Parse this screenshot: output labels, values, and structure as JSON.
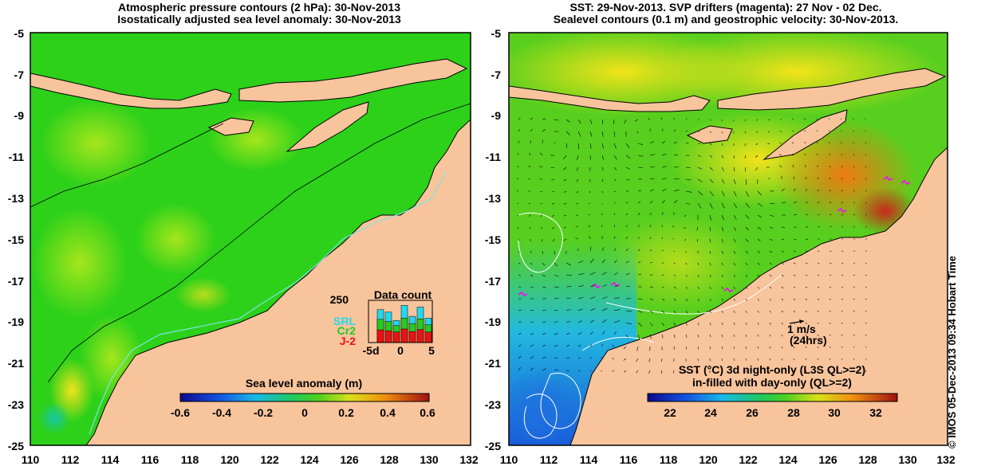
{
  "left_panel": {
    "title_line1": "Atmospheric pressure contours (2 hPa): 30-Nov-2013",
    "title_line2": "Isostatically adjusted sea level anomaly: 30-Nov-2013",
    "x_ticks": [
      "110",
      "112",
      "114",
      "116",
      "118",
      "120",
      "122",
      "124",
      "126",
      "128",
      "130",
      "132"
    ],
    "y_ticks": [
      "-5",
      "-7",
      "-9",
      "-11",
      "-13",
      "-15",
      "-17",
      "-19",
      "-21",
      "-23",
      "-25"
    ],
    "colorbar": {
      "title": "Sea level anomaly (m)",
      "ticks": [
        "-0.6",
        "-0.4",
        "-0.2",
        "0",
        "0.2",
        "0.4",
        "0.6"
      ]
    },
    "data_count": {
      "title": "Data count",
      "ymax_label": "250",
      "legend": [
        {
          "label": "SRL",
          "color": "#22d8f0"
        },
        {
          "label": "Cr2",
          "color": "#22cc22"
        },
        {
          "label": "J-2",
          "color": "#ee1111"
        }
      ],
      "x_labels": [
        "-5d",
        "0",
        "5"
      ],
      "bars": [
        {
          "srl": 0.0,
          "cr2": 0.0,
          "j2": 0.0
        },
        {
          "srl": 0.78,
          "cr2": 0.55,
          "j2": 0.3
        },
        {
          "srl": 0.72,
          "cr2": 0.5,
          "j2": 0.28
        },
        {
          "srl": 0.52,
          "cr2": 0.4,
          "j2": 0.25
        },
        {
          "srl": 0.88,
          "cr2": 0.58,
          "j2": 0.32
        },
        {
          "srl": 0.62,
          "cr2": 0.45,
          "j2": 0.26
        },
        {
          "srl": 0.84,
          "cr2": 0.56,
          "j2": 0.31
        },
        {
          "srl": 0.58,
          "cr2": 0.42,
          "j2": 0.25
        }
      ]
    }
  },
  "right_panel": {
    "title_line1": "SST: 29-Nov-2013. SVP drifters (magenta): 27 Nov - 02 Dec.",
    "title_line2": "Sealevel contours (0.1 m) and geostrophic velocity: 30-Nov-2013.",
    "x_ticks": [
      "110",
      "112",
      "114",
      "116",
      "118",
      "120",
      "122",
      "124",
      "126",
      "128",
      "130",
      "132"
    ],
    "y_ticks": [
      "-5",
      "-7",
      "-9",
      "-11",
      "-13",
      "-15",
      "-17",
      "-19",
      "-21",
      "-23",
      "-25"
    ],
    "scale_label": "1 m/s",
    "scale_sub": "(24hrs)",
    "colorbar": {
      "title_line1": "SST (°C)  3d night-only (L3S QL>=2)",
      "title_line2": "in-filled with day-only (QL>=2)",
      "ticks": [
        "22",
        "24",
        "26",
        "28",
        "30",
        "32"
      ]
    }
  },
  "credit": "© IMOS 05-Dec-2013 09:34 Hobart Time",
  "colors": {
    "land": "#f8c49c",
    "ocean_green": "#2dd11a",
    "coast_line": "#000000",
    "shelf_contour": "#7fe3e3"
  }
}
